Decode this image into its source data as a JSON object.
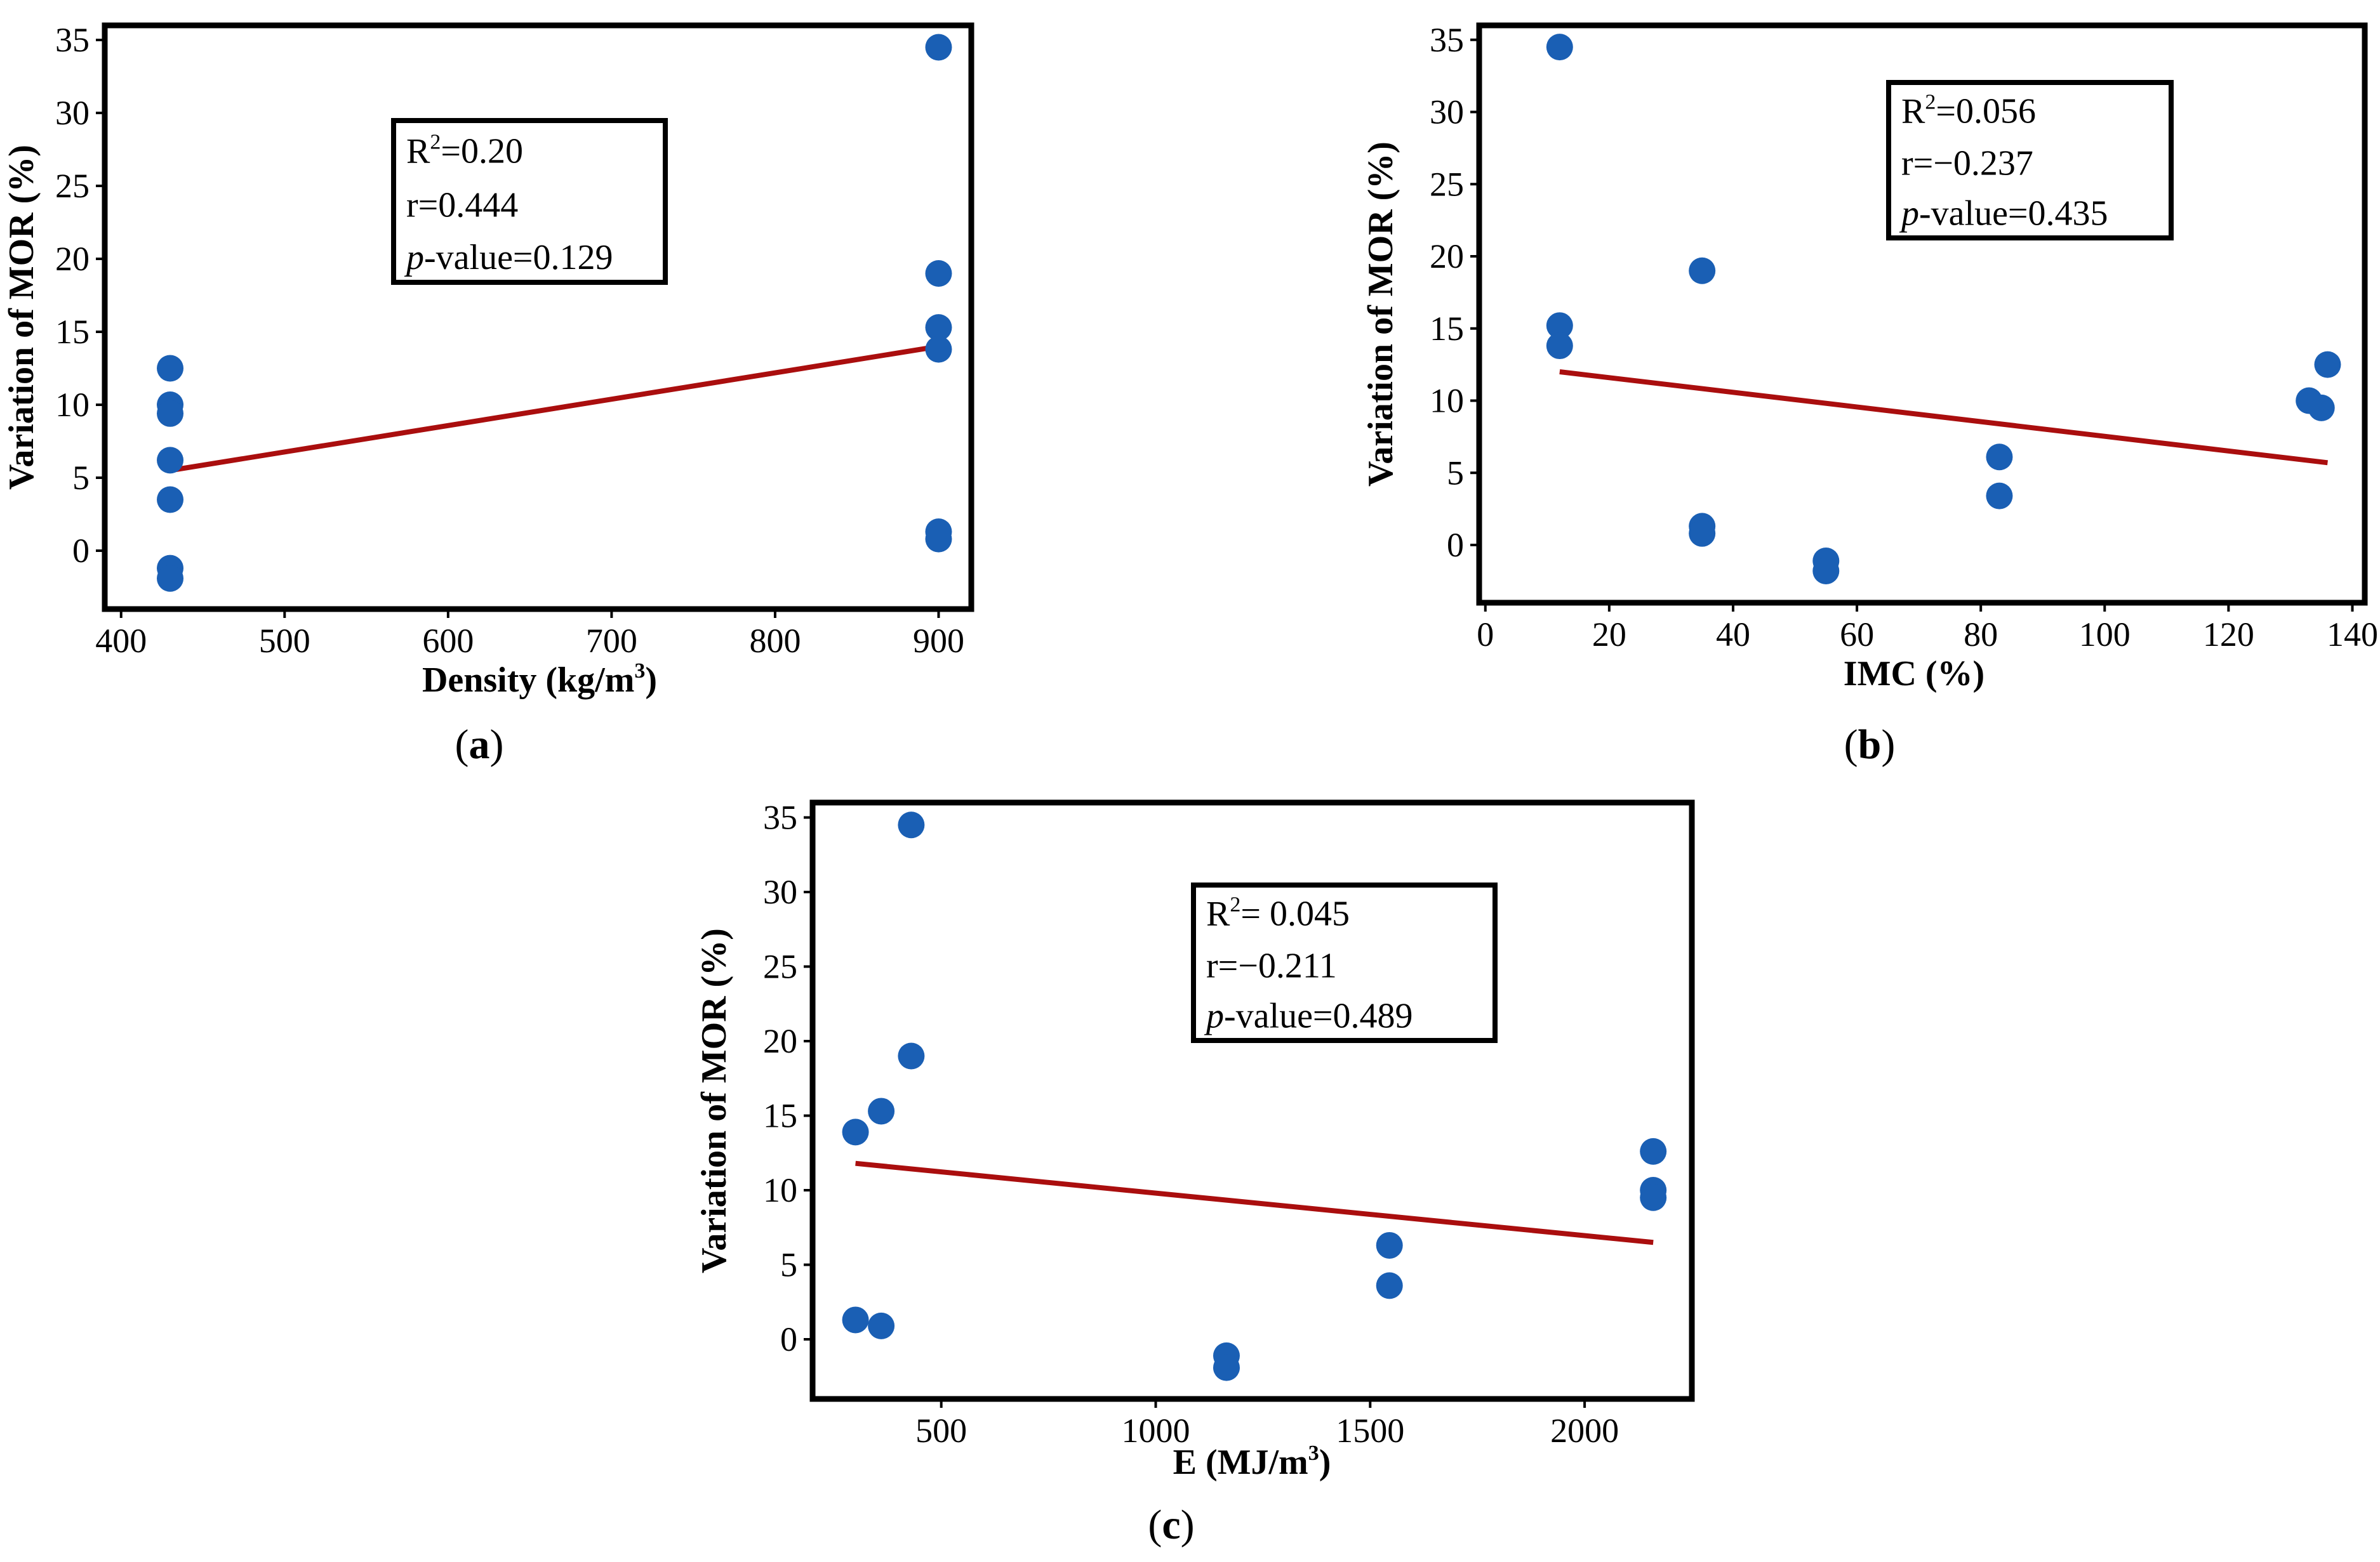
{
  "chart_data": [
    {
      "type": "scatter",
      "panel_label": "a",
      "xlabel": "Density (kg/m",
      "xlabel_sup": "3",
      "xlabel_end": ")",
      "ylabel": "Variation of MOR (%)",
      "xlim": [
        390,
        920
      ],
      "ylim": [
        -4,
        36
      ],
      "xticks": [
        400,
        500,
        600,
        700,
        800,
        900
      ],
      "yticks": [
        0,
        5,
        10,
        15,
        20,
        25,
        30,
        35
      ],
      "points": [
        {
          "x": 430,
          "y": 12.5
        },
        {
          "x": 430,
          "y": 10
        },
        {
          "x": 430,
          "y": 9.4
        },
        {
          "x": 430,
          "y": 6.2
        },
        {
          "x": 430,
          "y": 3.5
        },
        {
          "x": 430,
          "y": -1.2
        },
        {
          "x": 430,
          "y": -1.9
        },
        {
          "x": 900,
          "y": 34.5
        },
        {
          "x": 900,
          "y": 19
        },
        {
          "x": 900,
          "y": 15.3
        },
        {
          "x": 900,
          "y": 13.8
        },
        {
          "x": 900,
          "y": 1.3
        },
        {
          "x": 900,
          "y": 0.8
        }
      ],
      "fit_line": {
        "x": [
          430,
          900
        ],
        "y": [
          5.5,
          14
        ]
      },
      "stats": {
        "r2_label": "R",
        "r2_sup": "2",
        "r2_value": "=0.20",
        "r": "r=0.444",
        "p_italic": "p",
        "p_value": "-value=0.129"
      }
    },
    {
      "type": "scatter",
      "panel_label": "b",
      "xlabel": "IMC (%)",
      "ylabel": "Variation of MOR (%)",
      "xlim": [
        -1,
        142
      ],
      "ylim": [
        -4,
        36
      ],
      "xticks": [
        0,
        20,
        40,
        60,
        80,
        100,
        120,
        140
      ],
      "yticks": [
        0,
        5,
        10,
        15,
        20,
        25,
        30,
        35
      ],
      "points": [
        {
          "x": 12,
          "y": 34.5
        },
        {
          "x": 12,
          "y": 15.2
        },
        {
          "x": 12,
          "y": 13.8
        },
        {
          "x": 35,
          "y": 19
        },
        {
          "x": 35,
          "y": 1.3
        },
        {
          "x": 35,
          "y": 0.8
        },
        {
          "x": 55,
          "y": -1.1
        },
        {
          "x": 55,
          "y": -1.8
        },
        {
          "x": 83,
          "y": 6.1
        },
        {
          "x": 83,
          "y": 3.4
        },
        {
          "x": 133,
          "y": 10
        },
        {
          "x": 135,
          "y": 9.5
        },
        {
          "x": 136,
          "y": 12.5
        }
      ],
      "fit_line": {
        "x": [
          12,
          136
        ],
        "y": [
          12,
          5.7
        ]
      },
      "stats": {
        "r2_label": "R",
        "r2_sup": "2",
        "r2_value": "=0.056",
        "r": "r=−0.237",
        "p_italic": "p",
        "p_value": "-value=0.435"
      }
    },
    {
      "type": "scatter",
      "panel_label": "c",
      "xlabel": "E (MJ/m",
      "xlabel_sup": "3",
      "xlabel_end": ")",
      "ylabel": "Variation of MOR (%)",
      "xlim": [
        200,
        2250
      ],
      "ylim": [
        -4,
        36
      ],
      "xticks": [
        500,
        1000,
        1500,
        2000
      ],
      "yticks": [
        0,
        5,
        10,
        15,
        20,
        25,
        30,
        35
      ],
      "points": [
        {
          "x": 430,
          "y": 34.5
        },
        {
          "x": 430,
          "y": 19
        },
        {
          "x": 360,
          "y": 15.3
        },
        {
          "x": 300,
          "y": 13.9
        },
        {
          "x": 300,
          "y": 1.3
        },
        {
          "x": 360,
          "y": 0.9
        },
        {
          "x": 1165,
          "y": -1.1
        },
        {
          "x": 1165,
          "y": -1.9
        },
        {
          "x": 1545,
          "y": 6.3
        },
        {
          "x": 1545,
          "y": 3.6
        },
        {
          "x": 2160,
          "y": 12.6
        },
        {
          "x": 2160,
          "y": 10
        },
        {
          "x": 2160,
          "y": 9.5
        }
      ],
      "fit_line": {
        "x": [
          300,
          2160
        ],
        "y": [
          11.8,
          6.5
        ]
      },
      "stats": {
        "r2_label": "R",
        "r2_sup": "2",
        "r2_value": "= 0.045",
        "r": "r=−0.211",
        "p_italic": "p",
        "p_value": "-value=0.489"
      }
    }
  ],
  "colors": {
    "point": "#1a5fb4",
    "fit": "#aa0e0e",
    "frame": "#000000"
  }
}
